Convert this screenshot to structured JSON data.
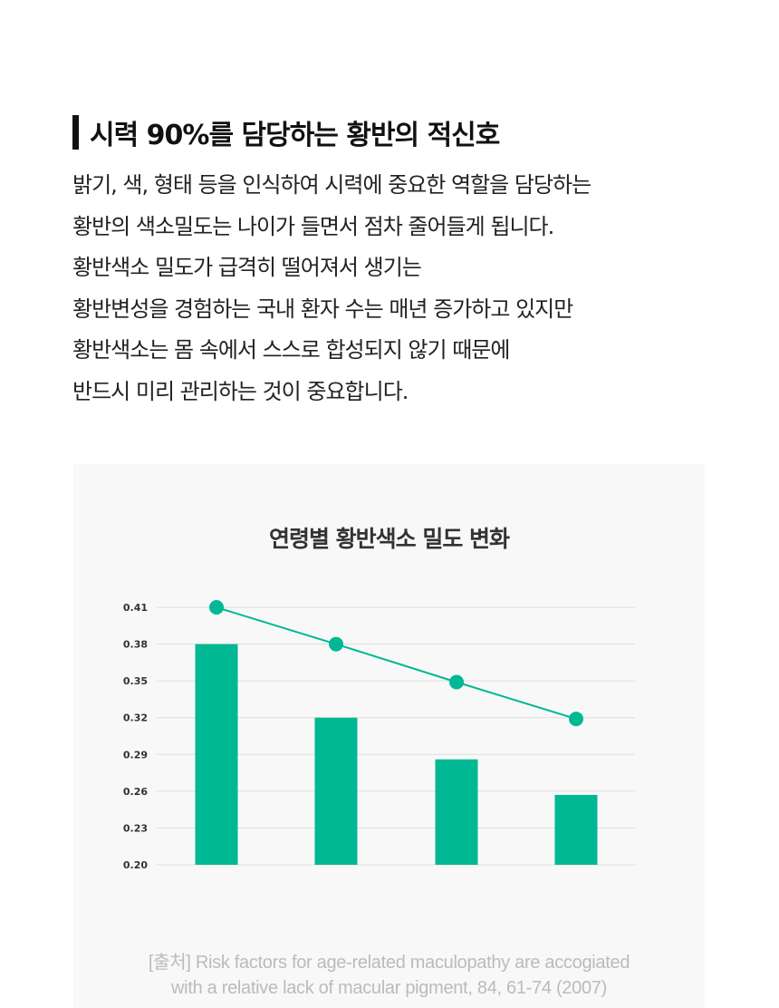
{
  "heading": {
    "title": "시력 90%를 담당하는 황반의 적신호"
  },
  "description": {
    "lines": [
      "밝기, 색, 형태 등을 인식하여 시력에 중요한 역할을 담당하는",
      "황반의 색소밀도는 나이가 들면서 점차 줄어들게 됩니다.",
      "황반색소 밀도가 급격히 떨어져서 생기는",
      "황반변성을 경험하는 국내 환자 수는 매년 증가하고 있지만",
      "황반색소는 몸 속에서 스스로 합성되지 않기 때문에",
      "반드시 미리 관리하는 것이 중요합니다."
    ]
  },
  "chart_data": {
    "type": "bar",
    "title": "연령별 황반색소 밀도 변화",
    "categories": [
      "",
      "",
      "",
      ""
    ],
    "values": [
      0.38,
      0.32,
      0.286,
      0.257
    ],
    "line_values": [
      0.41,
      0.38,
      0.349,
      0.319
    ],
    "y_ticks": [
      "0.20",
      "0.23",
      "0.26",
      "0.29",
      "0.32",
      "0.35",
      "0.38",
      "0.41"
    ],
    "ylim": [
      0.2,
      0.41
    ],
    "xlabel": "",
    "ylabel": "",
    "grid": true,
    "legend": "none",
    "colors": {
      "bar": "#00b894",
      "line": "#00b894",
      "grid": "#dddddd"
    }
  },
  "source": {
    "line1": "[출처] Risk factors for age-related maculopathy are accogiated",
    "line2": "with a relative lack of macular pigment, 84, 61-74 (2007)"
  }
}
